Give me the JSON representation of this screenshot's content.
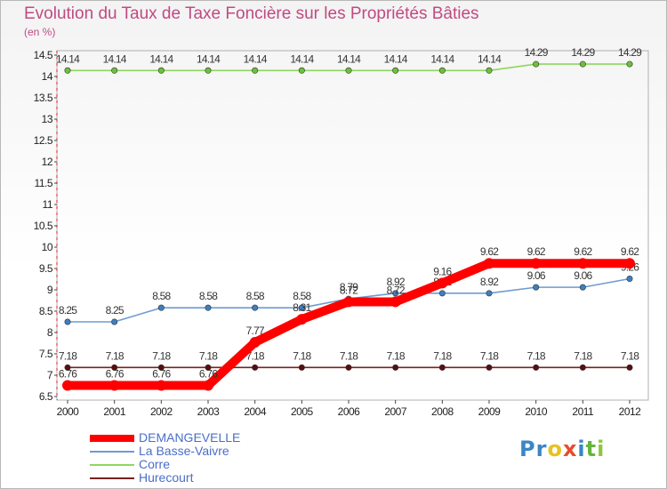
{
  "chart_data": {
    "type": "line",
    "title": "Evolution du Taux de Taxe Foncière sur les Propriétés Bâties",
    "ylabel": "(en %)",
    "x": [
      "2000",
      "2001",
      "2002",
      "2003",
      "2004",
      "2005",
      "2006",
      "2007",
      "2008",
      "2009",
      "2010",
      "2011",
      "2012"
    ],
    "ylim": [
      6.5,
      14.5
    ],
    "yticks": [
      "6.5",
      "7",
      "7.5",
      "8",
      "8.5",
      "9",
      "9.5",
      "10",
      "10.5",
      "11",
      "11.5",
      "12",
      "12.5",
      "13",
      "13.5",
      "14",
      "14.5"
    ],
    "series": [
      {
        "name": "Hurecourt",
        "color": "#7a2020",
        "marker": "#5a0d0d",
        "values": [
          7.18,
          7.18,
          7.18,
          7.18,
          7.18,
          7.18,
          7.18,
          7.18,
          7.18,
          7.18,
          7.18,
          7.18,
          7.18
        ],
        "labels": [
          "7.18",
          "7.18",
          "7.18",
          "7.18",
          "7.18",
          "7.18",
          "7.18",
          "7.18",
          "7.18",
          "7.18",
          "7.18",
          "7.18",
          "7.18"
        ]
      },
      {
        "name": "Corre",
        "color": "#8fd65f",
        "marker": "#6cc13b",
        "values": [
          14.14,
          14.14,
          14.14,
          14.14,
          14.14,
          14.14,
          14.14,
          14.14,
          14.14,
          14.14,
          14.29,
          14.29,
          14.29
        ],
        "labels": [
          "14.14",
          "14.14",
          "14.14",
          "14.14",
          "14.14",
          "14.14",
          "14.14",
          "14.14",
          "14.14",
          "14.14",
          "14.29",
          "14.29",
          "14.29"
        ]
      },
      {
        "name": "La Basse-Vaivre",
        "color": "#6f9bd0",
        "marker": "#3d7fc4",
        "values": [
          8.25,
          8.25,
          8.58,
          8.58,
          8.58,
          8.58,
          8.79,
          8.92,
          8.92,
          8.92,
          9.06,
          9.06,
          9.26
        ],
        "labels": [
          "8.25",
          "8.25",
          "8.58",
          "8.58",
          "8.58",
          "8.58",
          "8.79",
          "8.92",
          "8.92",
          "8.92",
          "9.06",
          "9.06",
          "9.26"
        ]
      },
      {
        "name": "DEMANGEVELLE",
        "color": "#ff0000",
        "marker": "#ff0000",
        "values": [
          6.76,
          6.76,
          6.76,
          6.76,
          7.77,
          8.31,
          8.72,
          8.72,
          9.16,
          9.62,
          9.62,
          9.62,
          9.62
        ],
        "labels": [
          "6.76",
          "6.76",
          "6.76",
          "6.76",
          "7.77",
          "8.31",
          "8.72",
          "8.72",
          "9.16",
          "9.62",
          "9.62",
          "9.62",
          "9.62"
        ]
      }
    ],
    "legend": [
      "DEMANGEVELLE",
      "La Basse-Vaivre",
      "Corre",
      "Hurecourt"
    ]
  },
  "logo": {
    "text": "Proxiti",
    "letters": [
      {
        "ch": "P",
        "color": "#3a86c8"
      },
      {
        "ch": "r",
        "color": "#3a86c8"
      },
      {
        "ch": "o",
        "color": "#e8c21f"
      },
      {
        "ch": "x",
        "color": "#e84c2c"
      },
      {
        "ch": "i",
        "color": "#3a86c8"
      },
      {
        "ch": "t",
        "color": "#66b53a"
      },
      {
        "ch": "i",
        "color": "#8dc63f"
      }
    ]
  }
}
